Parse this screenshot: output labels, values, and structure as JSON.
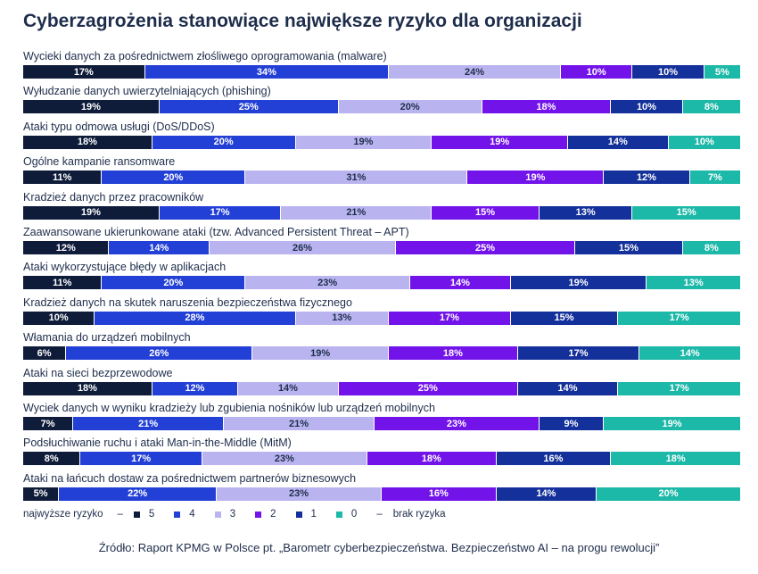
{
  "title": "Cyberzagrożenia stanowiące największe ryzyko dla organizacji",
  "legend": {
    "high_label": "najwyższe ryzyko",
    "low_label": "brak ryzyka",
    "dash": "–"
  },
  "source": "Źródło: Raport KPMG w Polsce pt. „Barometr cyberbezpieczeństwa. Bezpieczeństwo AI – na progu rewolucji”",
  "chart_data": {
    "type": "bar",
    "stacked": true,
    "orientation": "horizontal",
    "percent": true,
    "unit": "%",
    "levels": [
      "5",
      "4",
      "3",
      "2",
      "1",
      "0"
    ],
    "level_colors": [
      "#0e1c3a",
      "#2340d6",
      "#b9b4ef",
      "#7213ea",
      "#14309a",
      "#1cb8a8"
    ],
    "level_text_colors": [
      "#ffffff",
      "#ffffff",
      "#1e2d4b",
      "#ffffff",
      "#ffffff",
      "#ffffff"
    ],
    "categories": [
      "Wycieki danych za pośrednictwem złośliwego oprogramowania (malware)",
      "Wyłudzanie danych uwierzytelniających (phishing)",
      "Ataki typu odmowa usługi (DoS/DDoS)",
      "Ogólne kampanie ransomware",
      "Kradzież danych przez pracowników",
      "Zaawansowane ukierunkowane ataki (tzw. Advanced Persistent Threat – APT)",
      "Ataki wykorzystujące błędy w aplikacjach",
      "Kradzież danych na skutek naruszenia bezpieczeństwa fizycznego",
      "Włamania do urządzeń mobilnych",
      "Ataki na sieci bezprzewodowe",
      "Wyciek danych w wyniku kradzieży lub zgubienia nośników lub urządzeń mobilnych",
      "Podsłuchiwanie ruchu i ataki Man-in-the-Middle (MitM)",
      "Ataki na łańcuch dostaw za pośrednictwem partnerów biznesowych"
    ],
    "series": [
      {
        "name": "5",
        "values": [
          17,
          19,
          18,
          11,
          19,
          12,
          11,
          10,
          6,
          18,
          7,
          8,
          5
        ]
      },
      {
        "name": "4",
        "values": [
          34,
          25,
          20,
          20,
          17,
          14,
          20,
          28,
          26,
          12,
          21,
          17,
          22
        ]
      },
      {
        "name": "3",
        "values": [
          24,
          20,
          19,
          31,
          21,
          26,
          23,
          13,
          19,
          14,
          21,
          23,
          23
        ]
      },
      {
        "name": "2",
        "values": [
          10,
          18,
          19,
          19,
          15,
          25,
          14,
          17,
          18,
          25,
          23,
          18,
          16
        ]
      },
      {
        "name": "1",
        "values": [
          10,
          10,
          14,
          12,
          13,
          15,
          19,
          15,
          17,
          14,
          9,
          16,
          14
        ]
      },
      {
        "name": "0",
        "values": [
          5,
          8,
          10,
          7,
          15,
          8,
          13,
          17,
          14,
          17,
          19,
          18,
          20
        ]
      }
    ]
  }
}
